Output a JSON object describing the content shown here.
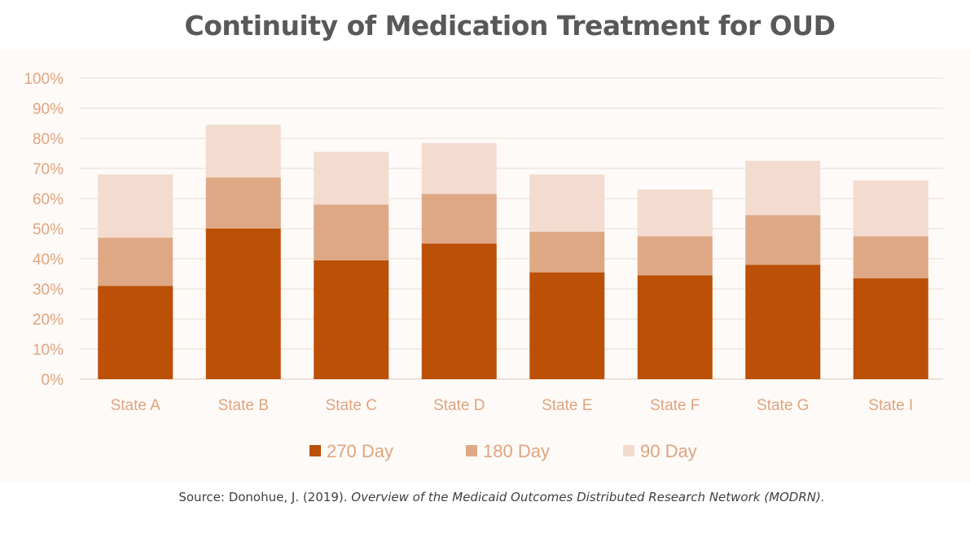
{
  "chart_data": {
    "type": "bar",
    "stacked": true,
    "title": "Continuity of Medication Treatment for OUD",
    "categories": [
      "State A",
      "State B",
      "State C",
      "State D",
      "State E",
      "State F",
      "State G",
      "State I"
    ],
    "series": [
      {
        "name": "270 Day",
        "color": "#bb5006",
        "values": [
          31,
          50,
          39.5,
          45,
          35.5,
          34.5,
          38,
          33.5
        ]
      },
      {
        "name": "180 Day",
        "color": "#dfa885",
        "values": [
          16,
          17,
          18.5,
          16.5,
          13.5,
          13,
          16.5,
          14
        ]
      },
      {
        "name": "90 Day",
        "color": "#f3dbcf",
        "values": [
          21,
          17.5,
          17.5,
          17,
          19,
          15.5,
          18,
          18.5
        ]
      }
    ],
    "ylim": [
      0,
      100
    ],
    "yticks": [
      "0%",
      "10%",
      "20%",
      "30%",
      "40%",
      "50%",
      "60%",
      "70%",
      "80%",
      "90%",
      "100%"
    ],
    "grid": true,
    "legend_position": "bottom"
  },
  "source": {
    "prefix": "Source: Donohue, J. (2019). ",
    "work": "Overview of the Medicaid Outcomes Distributed Research Network (MODRN)."
  }
}
